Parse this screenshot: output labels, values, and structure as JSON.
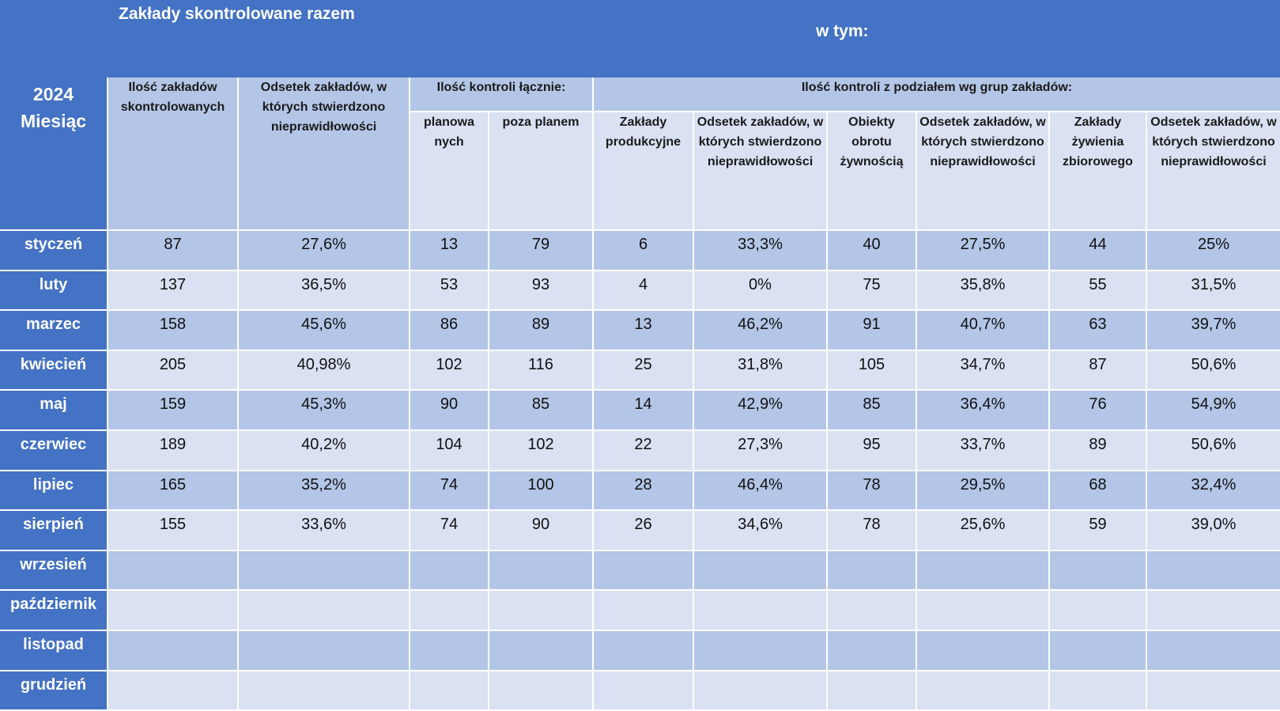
{
  "title_main": "Zakłady skontrolowane razem",
  "title_sub": "w tym:",
  "corner": {
    "year": "2024",
    "label": "Miesiąc"
  },
  "headers": {
    "count_total": "Ilość zakładów skontrolowanych",
    "pct_total": "Odsetek zakładów, w których stwierdzono nieprawidłowości",
    "controls_total": "Ilość kontroli łącznie:",
    "planned": "planowa nych",
    "unplanned": "poza planem",
    "by_group": "Ilość kontroli z podziałem wg grup zakładów:",
    "production": "Zakłady produkcyjne",
    "pct_production": "Odsetek zakładów, w których stwierdzono nieprawidłowości",
    "trade": "Obiekty obrotu żywnością",
    "pct_trade": "Odsetek zakładów, w których stwierdzono nieprawidłowości",
    "catering": "Zakłady żywienia zbiorowego",
    "pct_catering": "Odsetek zakładów, w których stwierdzono nieprawidłowości"
  },
  "rows": [
    {
      "month": "styczeń",
      "values": [
        "87",
        "27,6%",
        "13",
        "79",
        "6",
        "33,3%",
        "40",
        "27,5%",
        "44",
        "25%"
      ]
    },
    {
      "month": "luty",
      "values": [
        "137",
        "36,5%",
        "53",
        "93",
        "4",
        "0%",
        "75",
        "35,8%",
        "55",
        "31,5%"
      ]
    },
    {
      "month": "marzec",
      "values": [
        "158",
        "45,6%",
        "86",
        "89",
        "13",
        "46,2%",
        "91",
        "40,7%",
        "63",
        "39,7%"
      ]
    },
    {
      "month": "kwiecień",
      "values": [
        "205",
        "40,98%",
        "102",
        "116",
        "25",
        "31,8%",
        "105",
        "34,7%",
        "87",
        "50,6%"
      ]
    },
    {
      "month": "maj",
      "values": [
        "159",
        "45,3%",
        "90",
        "85",
        "14",
        "42,9%",
        "85",
        "36,4%",
        "76",
        "54,9%"
      ]
    },
    {
      "month": "czerwiec",
      "values": [
        "189",
        "40,2%",
        "104",
        "102",
        "22",
        "27,3%",
        "95",
        "33,7%",
        "89",
        "50,6%"
      ]
    },
    {
      "month": "lipiec",
      "values": [
        "165",
        "35,2%",
        "74",
        "100",
        "28",
        "46,4%",
        "78",
        "29,5%",
        "68",
        "32,4%"
      ]
    },
    {
      "month": "sierpień",
      "values": [
        "155",
        "33,6%",
        "74",
        "90",
        "26",
        "34,6%",
        "78",
        "25,6%",
        "59",
        "39,0%"
      ]
    },
    {
      "month": "wrzesień",
      "values": [
        "",
        "",
        "",
        "",
        "",
        "",
        "",
        "",
        "",
        ""
      ]
    },
    {
      "month": "październik",
      "values": [
        "",
        "",
        "",
        "",
        "",
        "",
        "",
        "",
        "",
        ""
      ]
    },
    {
      "month": "listopad",
      "values": [
        "",
        "",
        "",
        "",
        "",
        "",
        "",
        "",
        "",
        ""
      ]
    },
    {
      "month": "grudzień",
      "values": [
        "",
        "",
        "",
        "",
        "",
        "",
        "",
        "",
        "",
        ""
      ]
    }
  ],
  "colors": {
    "header_blue": "#4472C4",
    "dark_cell": "#B4C6E7",
    "light_cell": "#D9E1F2"
  }
}
